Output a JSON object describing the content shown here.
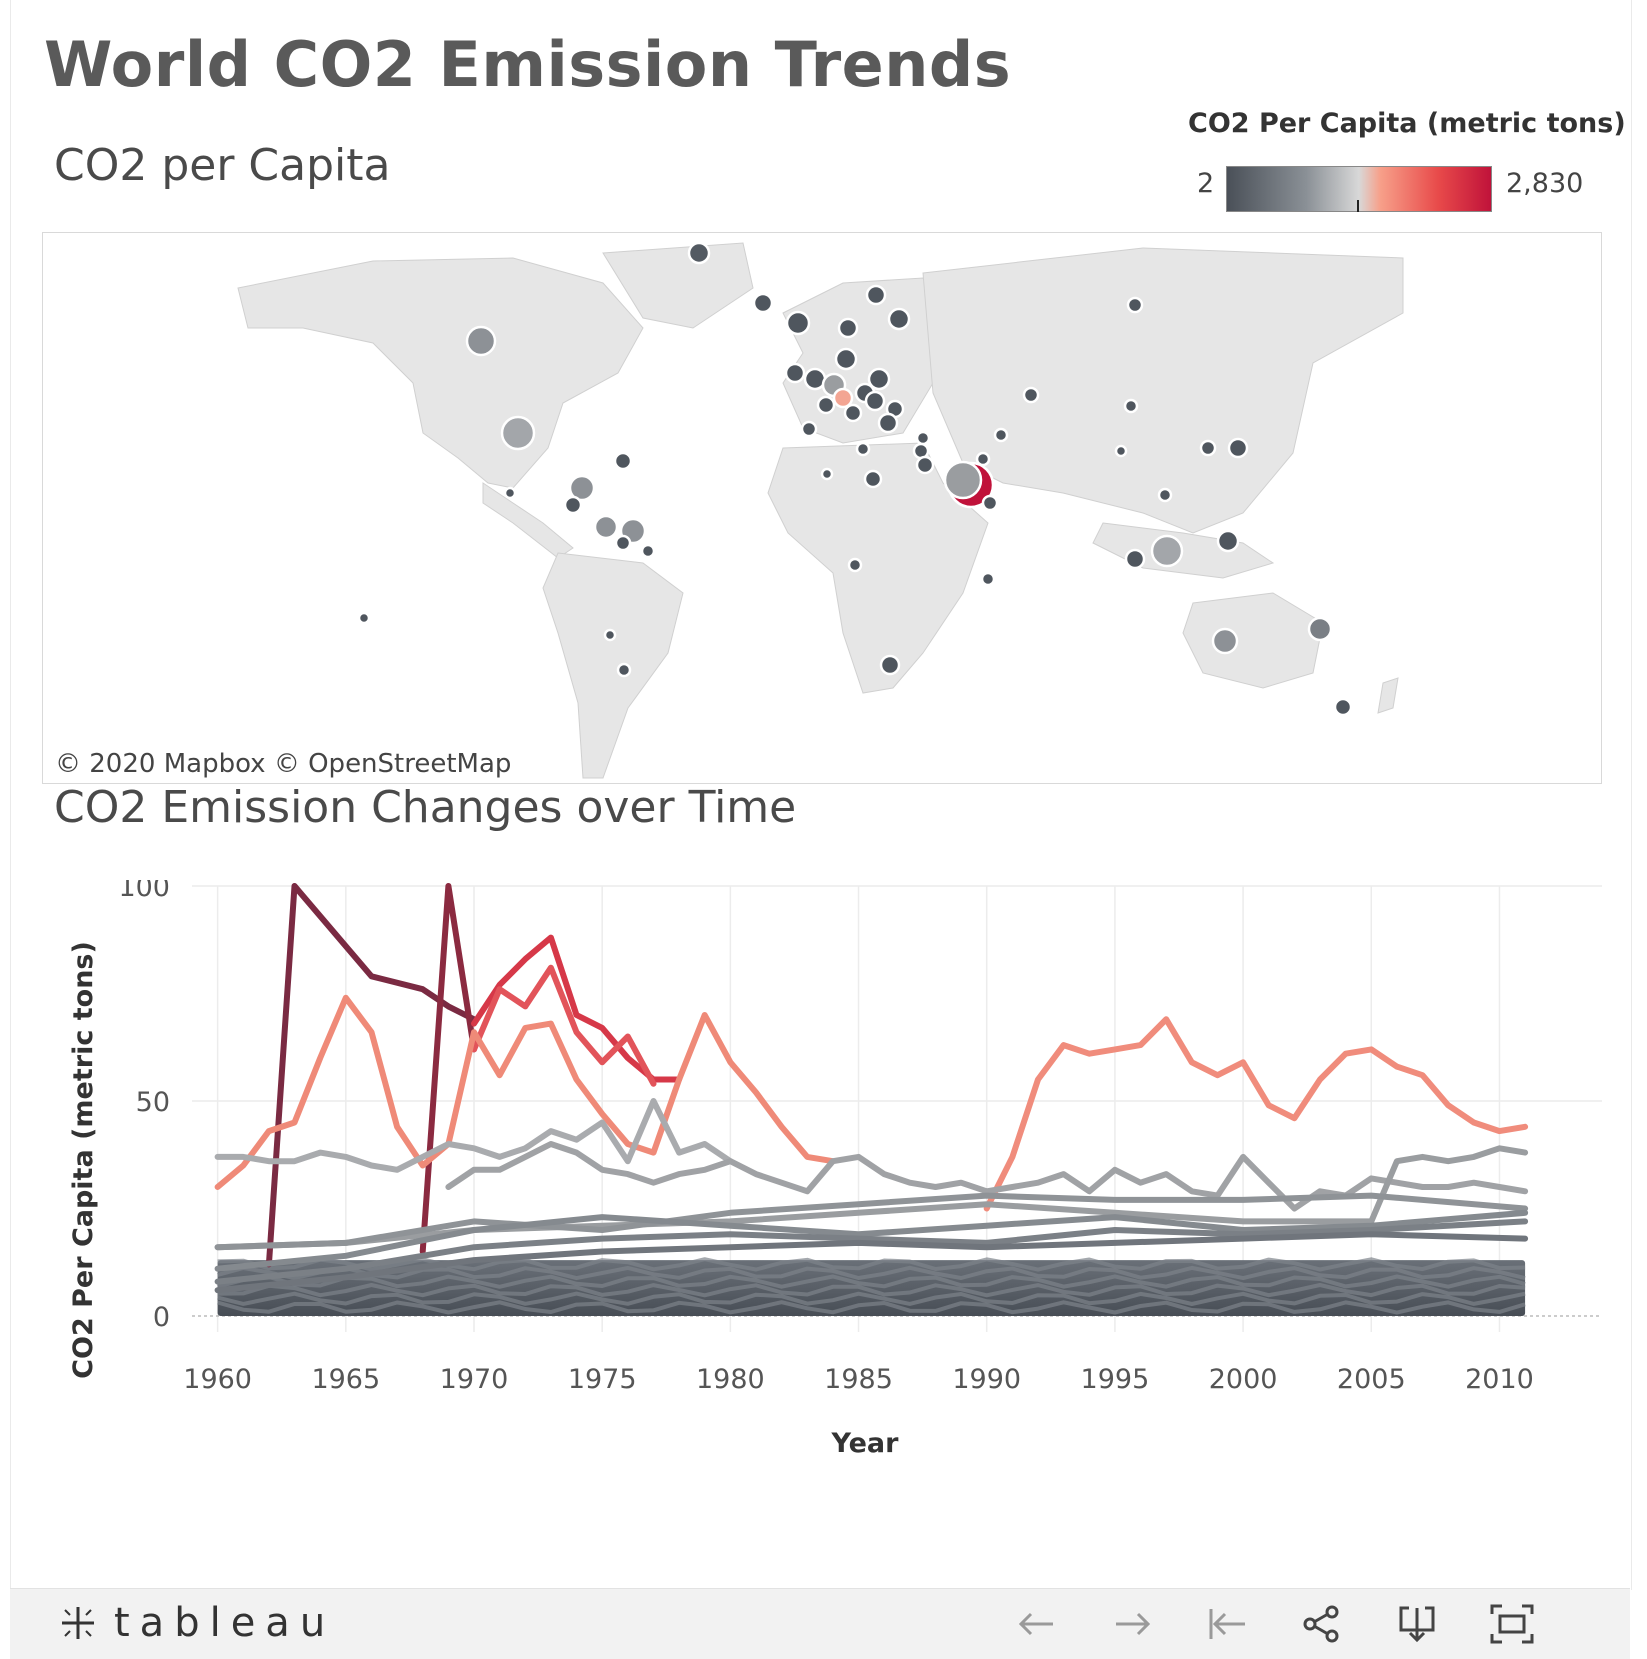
{
  "title": "World CO2 Emission Trends",
  "map_section": {
    "title": "CO2 per Capita",
    "legend": {
      "title": "CO2 Per Capita (metric tons)",
      "min_label": "2",
      "max_label": "2,830",
      "gradient": [
        "#4a5058",
        "#8a9096",
        "#d8d8d8",
        "#f7a08a",
        "#e84a4a",
        "#c0123a"
      ]
    },
    "credit": "© 2020 Mapbox  © OpenStreetMap",
    "land_color": "#e6e6e6",
    "mark_color_low": "#4f565e"
  },
  "chart_section": {
    "title": "CO2 Emission Changes over Time"
  },
  "chart_data": {
    "type": "line",
    "xlabel": "Year",
    "ylabel": "CO2 Per Capita (metric tons)",
    "xlim": [
      1959,
      2014
    ],
    "ylim": [
      0,
      100
    ],
    "x_ticks": [
      1960,
      1965,
      1970,
      1975,
      1980,
      1985,
      1990,
      1995,
      2000,
      2005,
      2010
    ],
    "y_ticks": [
      0,
      50,
      100
    ],
    "grid": true,
    "series": [
      {
        "color": "#7a2a42",
        "x": [
          1962,
          1963,
          1965,
          1966,
          1968,
          1969,
          1970
        ],
        "values": [
          12,
          100,
          86,
          79,
          76,
          72,
          69
        ]
      },
      {
        "color": "#8b2a40",
        "x": [
          1968,
          1969,
          1970
        ],
        "values": [
          15,
          100,
          62
        ]
      },
      {
        "color": "#d63848",
        "x": [
          1970,
          1971,
          1972,
          1973,
          1974,
          1975,
          1976,
          1977,
          1978
        ],
        "values": [
          68,
          77,
          83,
          88,
          70,
          67,
          60,
          55,
          55
        ]
      },
      {
        "color": "#e2545a",
        "x": [
          1970,
          1971,
          1972,
          1973,
          1974,
          1975,
          1976,
          1977
        ],
        "values": [
          62,
          76,
          72,
          81,
          66,
          59,
          65,
          54
        ]
      },
      {
        "color": "#ef8a78",
        "x": [
          1960,
          1961,
          1962,
          1963,
          1964,
          1965,
          1966,
          1967,
          1968,
          1969,
          1970,
          1971,
          1972,
          1973,
          1974,
          1975,
          1976,
          1977,
          1978,
          1979,
          1980,
          1981,
          1982,
          1983,
          1984
        ],
        "values": [
          30,
          35,
          43,
          45,
          60,
          74,
          66,
          44,
          35,
          40,
          66,
          56,
          67,
          68,
          55,
          47,
          40,
          38,
          55,
          70,
          59,
          52,
          44,
          37,
          36
        ]
      },
      {
        "color": "#f08c7c",
        "x": [
          1990,
          1991,
          1992,
          1993,
          1994,
          1995,
          1996,
          1997,
          1998,
          1999,
          2000,
          2001,
          2002,
          2003,
          2004,
          2005,
          2006,
          2007,
          2008,
          2009,
          2010,
          2011
        ],
        "values": [
          25,
          37,
          55,
          63,
          61,
          62,
          63,
          69,
          59,
          56,
          59,
          49,
          46,
          55,
          61,
          62,
          58,
          56,
          49,
          45,
          43,
          44
        ]
      },
      {
        "color": "#a9abae",
        "x": [
          1960,
          1961,
          1962,
          1963,
          1964,
          1965,
          1966,
          1967,
          1968,
          1969,
          1970,
          1971,
          1972,
          1973,
          1974,
          1975,
          1976,
          1977,
          1978,
          1979,
          1980
        ],
        "values": [
          37,
          37,
          36,
          36,
          38,
          37,
          35,
          34,
          37,
          40,
          39,
          37,
          39,
          43,
          41,
          45,
          36,
          50,
          38,
          40,
          36
        ]
      },
      {
        "color": "#a0a2a5",
        "x": [
          1969,
          1970,
          1971,
          1972,
          1973,
          1974,
          1975,
          1976,
          1977,
          1978,
          1979,
          1980,
          1981,
          1982,
          1983,
          1984,
          1985,
          1986,
          1987,
          1988,
          1989,
          1990,
          1991,
          1992,
          1993,
          1994,
          1995,
          1996,
          1997,
          1998,
          1999,
          2000,
          2001,
          2002,
          2003,
          2004,
          2005,
          2006,
          2007,
          2008,
          2009,
          2010,
          2011
        ],
        "values": [
          30,
          34,
          34,
          37,
          40,
          38,
          34,
          33,
          31,
          33,
          34,
          36,
          33,
          31,
          29,
          36,
          37,
          33,
          31,
          30,
          31,
          29,
          30,
          31,
          33,
          29,
          34,
          31,
          33,
          29,
          28,
          37,
          31,
          25,
          29,
          28,
          32,
          31,
          30,
          30,
          31,
          30,
          29
        ]
      },
      {
        "color": "#9a9da0",
        "x": [
          1960,
          1965,
          1970,
          1975,
          1980,
          1985,
          1990,
          1995,
          2000,
          2005,
          2006,
          2007,
          2008,
          2009,
          2010,
          2011
        ],
        "values": [
          16,
          17,
          20,
          21,
          22,
          24,
          26,
          24,
          22,
          22,
          36,
          37,
          36,
          37,
          39,
          38
        ]
      },
      {
        "color": "#8f9397",
        "x": [
          1960,
          1965,
          1970,
          1975,
          1980,
          1985,
          1990,
          1995,
          2000,
          2005,
          2011
        ],
        "values": [
          16,
          17,
          22,
          20,
          24,
          26,
          28,
          27,
          27,
          28,
          25
        ]
      },
      {
        "color": "#858a8f",
        "x": [
          1960,
          1965,
          1970,
          1975,
          1980,
          1985,
          1990,
          1995,
          2000,
          2005,
          2011
        ],
        "values": [
          11,
          14,
          20,
          23,
          21,
          19,
          21,
          23,
          20,
          21,
          24
        ]
      },
      {
        "color": "#7b8086",
        "x": [
          1960,
          1965,
          1970,
          1975,
          1980,
          1985,
          1990,
          1995,
          2000,
          2005,
          2011
        ],
        "values": [
          8,
          11,
          16,
          18,
          19,
          18,
          17,
          20,
          19,
          20,
          22
        ]
      },
      {
        "color": "#70757c",
        "x": [
          1960,
          1965,
          1970,
          1975,
          1980,
          1985,
          1990,
          1995,
          2000,
          2005,
          2011
        ],
        "values": [
          6,
          9,
          13,
          15,
          16,
          17,
          16,
          17,
          18,
          19,
          18
        ]
      }
    ],
    "dense_band": {
      "color_top": "#6a7078",
      "color_bottom": "#474d55",
      "from": 0,
      "to": 13
    }
  },
  "footer": {
    "brand": "tableau",
    "controls": [
      "undo-icon",
      "redo-icon",
      "revert-icon",
      "share-icon",
      "download-icon",
      "fullscreen-icon"
    ]
  }
}
